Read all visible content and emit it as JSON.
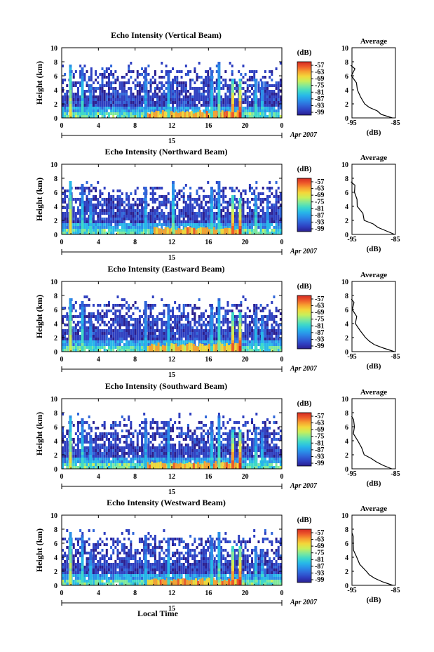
{
  "figure": {
    "xlabel": "Local Time",
    "date_label": "Apr 2007",
    "day_label": "15",
    "ylabel": "Height (km)",
    "cbar_label": "(dB)",
    "avg_title": "Average",
    "avg_xlabel": "(dB)",
    "x_ticks": [
      "0",
      "4",
      "8",
      "12",
      "16",
      "20",
      "0"
    ],
    "y_ticks": [
      "0",
      "2",
      "4",
      "6",
      "8",
      "10"
    ],
    "cbar_ticks": [
      "-57",
      "-63",
      "-69",
      "-75",
      "-81",
      "-87",
      "-93",
      "-99"
    ],
    "avg_x_ticks": [
      "-95",
      "-85"
    ]
  },
  "colormap": [
    "#2a1f8f",
    "#2e3fc0",
    "#2f66d9",
    "#2a8fe8",
    "#27b8e8",
    "#3fd9c8",
    "#7fe89a",
    "#c8ef5a",
    "#f3d83a",
    "#f7a030",
    "#ee5a2a",
    "#d42a22"
  ],
  "chart_data": [
    {
      "type": "heatmap",
      "title": "Echo Intensity (Vertical Beam)",
      "xlabel": "Local Time",
      "ylabel": "Height (km)",
      "xlim": [
        0,
        24
      ],
      "ylim": [
        0,
        10
      ],
      "colorbar": {
        "label": "(dB)",
        "range": [
          -99,
          -57
        ]
      },
      "columns": [
        {
          "x": 0.8,
          "top": 7.5,
          "intensity": 0.75
        },
        {
          "x": 2.1,
          "top": 7.0,
          "intensity": 0.55
        },
        {
          "x": 3.0,
          "top": 4.5,
          "intensity": 0.5
        },
        {
          "x": 9.0,
          "top": 7.0,
          "intensity": 0.45
        },
        {
          "x": 11.5,
          "top": 6.5,
          "intensity": 0.5
        },
        {
          "x": 16.2,
          "top": 6.5,
          "intensity": 0.5
        },
        {
          "x": 17.0,
          "top": 7.8,
          "intensity": 0.6
        },
        {
          "x": 18.5,
          "top": 5.5,
          "intensity": 0.95
        },
        {
          "x": 19.3,
          "top": 5.5,
          "intensity": 1.0
        },
        {
          "x": 21.0,
          "top": 5.5,
          "intensity": 0.55
        },
        {
          "x": 21.7,
          "top": 5.0,
          "intensity": 0.5
        }
      ],
      "surface_layer": {
        "x_start": 9,
        "x_end": 19.5,
        "height": 1.0,
        "intensity": 0.85
      },
      "average_profile": {
        "xlim": [
          -95,
          -85
        ],
        "heights": [
          0,
          0.5,
          1,
          1.5,
          2,
          3,
          4,
          5,
          6,
          7,
          7.5
        ],
        "values": [
          -85.5,
          -88,
          -89.5,
          -91,
          -92,
          -93,
          -94,
          -94.3,
          -94.8,
          -94.5,
          -95
        ]
      }
    },
    {
      "type": "heatmap",
      "title": "Echo Intensity (Northward Beam)",
      "xlabel": "Local Time",
      "ylabel": "Height (km)",
      "xlim": [
        0,
        24
      ],
      "ylim": [
        0,
        10
      ],
      "colorbar": {
        "label": "(dB)",
        "range": [
          -99,
          -57
        ]
      },
      "columns": [
        {
          "x": 0.8,
          "top": 7.5,
          "intensity": 0.8
        },
        {
          "x": 2.1,
          "top": 7.0,
          "intensity": 0.55
        },
        {
          "x": 3.0,
          "top": 4.5,
          "intensity": 0.55
        },
        {
          "x": 9.0,
          "top": 6.5,
          "intensity": 0.5
        },
        {
          "x": 12.0,
          "top": 7.5,
          "intensity": 0.6
        },
        {
          "x": 16.2,
          "top": 6.5,
          "intensity": 0.55
        },
        {
          "x": 17.0,
          "top": 7.5,
          "intensity": 0.55
        },
        {
          "x": 18.5,
          "top": 5.5,
          "intensity": 0.95
        },
        {
          "x": 19.3,
          "top": 5.0,
          "intensity": 1.0
        },
        {
          "x": 21.0,
          "top": 5.5,
          "intensity": 0.6
        },
        {
          "x": 22.3,
          "top": 5.0,
          "intensity": 0.5
        }
      ],
      "surface_layer": {
        "x_start": 10,
        "x_end": 19.5,
        "height": 1.0,
        "intensity": 0.85
      },
      "average_profile": {
        "xlim": [
          -95,
          -85
        ],
        "heights": [
          0,
          0.5,
          1,
          1.5,
          2,
          3,
          4,
          5,
          6,
          7,
          7.5
        ],
        "values": [
          -85.2,
          -87.5,
          -89,
          -90.5,
          -91.8,
          -92.8,
          -93.8,
          -94.2,
          -94.6,
          -94.4,
          -95
        ]
      }
    },
    {
      "type": "heatmap",
      "title": "Echo Intensity (Eastward Beam)",
      "xlabel": "Local Time",
      "ylabel": "Height (km)",
      "xlim": [
        0,
        24
      ],
      "ylim": [
        0,
        10
      ],
      "colorbar": {
        "label": "(dB)",
        "range": [
          -99,
          -57
        ]
      },
      "columns": [
        {
          "x": 0.8,
          "top": 7.5,
          "intensity": 0.75
        },
        {
          "x": 2.1,
          "top": 7.0,
          "intensity": 0.55
        },
        {
          "x": 3.0,
          "top": 4.5,
          "intensity": 0.5
        },
        {
          "x": 9.0,
          "top": 7.0,
          "intensity": 0.45
        },
        {
          "x": 11.5,
          "top": 6.5,
          "intensity": 0.5
        },
        {
          "x": 16.2,
          "top": 6.5,
          "intensity": 0.5
        },
        {
          "x": 17.0,
          "top": 7.5,
          "intensity": 0.6
        },
        {
          "x": 18.5,
          "top": 5.5,
          "intensity": 0.95
        },
        {
          "x": 19.3,
          "top": 5.5,
          "intensity": 1.0
        },
        {
          "x": 21.0,
          "top": 5.5,
          "intensity": 0.55
        },
        {
          "x": 21.7,
          "top": 5.0,
          "intensity": 0.5
        }
      ],
      "surface_layer": {
        "x_start": 9,
        "x_end": 19.5,
        "height": 1.2,
        "intensity": 0.8
      },
      "average_profile": {
        "xlim": [
          -95,
          -85
        ],
        "heights": [
          0,
          0.5,
          1,
          1.5,
          2,
          3,
          4,
          5,
          6,
          7,
          7.5
        ],
        "values": [
          -85.5,
          -88,
          -89.5,
          -91,
          -92,
          -93,
          -94,
          -94.3,
          -94.8,
          -94.5,
          -95
        ]
      }
    },
    {
      "type": "heatmap",
      "title": "Echo Intensity (Southward Beam)",
      "xlabel": "Local Time",
      "ylabel": "Height (km)",
      "xlim": [
        0,
        24
      ],
      "ylim": [
        0,
        10
      ],
      "colorbar": {
        "label": "(dB)",
        "range": [
          -99,
          -57
        ]
      },
      "columns": [
        {
          "x": 0.8,
          "top": 7.5,
          "intensity": 0.75
        },
        {
          "x": 2.1,
          "top": 7.0,
          "intensity": 0.55
        },
        {
          "x": 3.0,
          "top": 4.5,
          "intensity": 0.5
        },
        {
          "x": 9.0,
          "top": 7.0,
          "intensity": 0.45
        },
        {
          "x": 11.5,
          "top": 6.5,
          "intensity": 0.5
        },
        {
          "x": 16.2,
          "top": 6.5,
          "intensity": 0.5
        },
        {
          "x": 17.0,
          "top": 7.5,
          "intensity": 0.6
        },
        {
          "x": 18.5,
          "top": 5.5,
          "intensity": 0.95
        },
        {
          "x": 19.3,
          "top": 5.5,
          "intensity": 1.0
        },
        {
          "x": 21.0,
          "top": 5.5,
          "intensity": 0.55
        },
        {
          "x": 21.7,
          "top": 5.0,
          "intensity": 0.5
        }
      ],
      "surface_layer": {
        "x_start": 9,
        "x_end": 19.5,
        "height": 1.0,
        "intensity": 0.85
      },
      "average_profile": {
        "xlim": [
          -95,
          -85
        ],
        "heights": [
          0,
          0.5,
          1,
          1.5,
          2,
          3,
          4,
          5,
          6,
          7,
          7.5
        ],
        "values": [
          -85.5,
          -88,
          -89.5,
          -91,
          -92,
          -93,
          -94,
          -94.3,
          -94.8,
          -94.5,
          -95
        ]
      }
    },
    {
      "type": "heatmap",
      "title": "Echo Intensity (Westward Beam)",
      "xlabel": "Local Time",
      "ylabel": "Height (km)",
      "xlim": [
        0,
        24
      ],
      "ylim": [
        0,
        10
      ],
      "colorbar": {
        "label": "(dB)",
        "range": [
          -99,
          -57
        ]
      },
      "columns": [
        {
          "x": 0.8,
          "top": 7.5,
          "intensity": 0.75
        },
        {
          "x": 2.1,
          "top": 7.0,
          "intensity": 0.55
        },
        {
          "x": 3.0,
          "top": 4.5,
          "intensity": 0.5
        },
        {
          "x": 9.0,
          "top": 7.0,
          "intensity": 0.45
        },
        {
          "x": 11.5,
          "top": 6.5,
          "intensity": 0.5
        },
        {
          "x": 16.2,
          "top": 6.5,
          "intensity": 0.5
        },
        {
          "x": 17.0,
          "top": 7.5,
          "intensity": 0.6
        },
        {
          "x": 18.5,
          "top": 5.5,
          "intensity": 0.95
        },
        {
          "x": 19.3,
          "top": 5.5,
          "intensity": 1.0
        },
        {
          "x": 21.0,
          "top": 5.5,
          "intensity": 0.55
        },
        {
          "x": 21.7,
          "top": 5.0,
          "intensity": 0.5
        }
      ],
      "surface_layer": {
        "x_start": 9,
        "x_end": 19.5,
        "height": 1.0,
        "intensity": 0.85
      },
      "average_profile": {
        "xlim": [
          -95,
          -85
        ],
        "heights": [
          0,
          0.5,
          1,
          1.5,
          2,
          3,
          4,
          5,
          6,
          7,
          7.5
        ],
        "values": [
          -85.5,
          -88,
          -89.5,
          -91,
          -92,
          -93,
          -94,
          -94.3,
          -94.8,
          -94.5,
          -95
        ]
      }
    }
  ]
}
